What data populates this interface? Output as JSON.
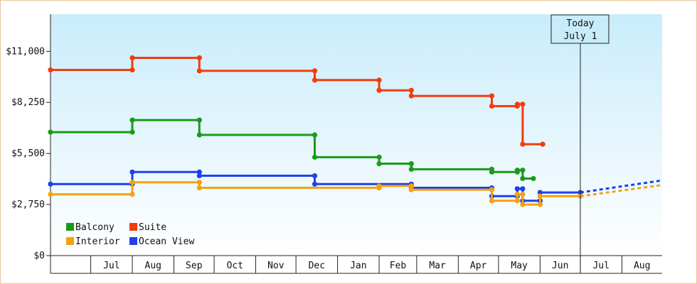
{
  "chart_data": {
    "type": "line",
    "step": true,
    "y_axis": {
      "ylim": [
        0,
        13000
      ],
      "ticks": [
        {
          "value": 0,
          "label": "$0"
        },
        {
          "value": 2750,
          "label": "$2,750"
        },
        {
          "value": 5500,
          "label": "$5,500"
        },
        {
          "value": 8250,
          "label": "$8,250"
        },
        {
          "value": 11000,
          "label": "$11,000"
        }
      ]
    },
    "x_axis": {
      "start": "2024-06-01",
      "end": "2025-08-31",
      "months": [
        {
          "start": "2024-06-01",
          "label": ""
        },
        {
          "start": "2024-07-01",
          "label": "Jul"
        },
        {
          "start": "2024-08-01",
          "label": "Aug"
        },
        {
          "start": "2024-09-01",
          "label": "Sep"
        },
        {
          "start": "2024-10-01",
          "label": "Oct"
        },
        {
          "start": "2024-11-01",
          "label": "Nov"
        },
        {
          "start": "2024-12-01",
          "label": "Dec"
        },
        {
          "start": "2025-01-01",
          "label": "Jan"
        },
        {
          "start": "2025-02-01",
          "label": "Feb"
        },
        {
          "start": "2025-03-01",
          "label": "Mar"
        },
        {
          "start": "2025-04-01",
          "label": "Apr"
        },
        {
          "start": "2025-05-01",
          "label": "May"
        },
        {
          "start": "2025-06-01",
          "label": "Jun"
        },
        {
          "start": "2025-07-01",
          "label": "Jul"
        },
        {
          "start": "2025-08-01",
          "label": "Aug"
        }
      ]
    },
    "today": {
      "date": "2025-07-01",
      "line1": "Today",
      "line2": "July 1"
    },
    "legend": {
      "placement": "bottom-left",
      "items": [
        {
          "label": "Balcony",
          "color": "#1a9a1a"
        },
        {
          "label": "Suite",
          "color": "#f23c0f"
        },
        {
          "label": "Interior",
          "color": "#f5a20f"
        },
        {
          "label": "Ocean View",
          "color": "#1e40ee"
        }
      ]
    },
    "series": [
      {
        "name": "Suite",
        "color": "#f23c0f",
        "points": [
          [
            "2024-06-01",
            10000
          ],
          [
            "2024-08-01",
            10000
          ],
          [
            "2024-08-01",
            10650
          ],
          [
            "2024-09-20",
            10650
          ],
          [
            "2024-09-20",
            9950
          ],
          [
            "2024-12-15",
            9950
          ],
          [
            "2024-12-15",
            9450
          ],
          [
            "2025-02-01",
            9450
          ],
          [
            "2025-02-01",
            8900
          ],
          [
            "2025-02-25",
            8900
          ],
          [
            "2025-02-25",
            8600
          ],
          [
            "2025-04-26",
            8600
          ],
          [
            "2025-04-26",
            8050
          ],
          [
            "2025-05-15",
            8050
          ],
          [
            "2025-05-15",
            8150
          ],
          [
            "2025-05-19",
            8150
          ],
          [
            "2025-05-19",
            6000
          ],
          [
            "2025-06-03",
            6000
          ]
        ]
      },
      {
        "name": "Balcony",
        "color": "#1a9a1a",
        "points": [
          [
            "2024-06-01",
            6650
          ],
          [
            "2024-08-01",
            6650
          ],
          [
            "2024-08-01",
            7300
          ],
          [
            "2024-09-20",
            7300
          ],
          [
            "2024-09-20",
            6500
          ],
          [
            "2024-12-15",
            6500
          ],
          [
            "2024-12-15",
            5300
          ],
          [
            "2025-02-01",
            5300
          ],
          [
            "2025-02-01",
            4950
          ],
          [
            "2025-02-25",
            4950
          ],
          [
            "2025-02-25",
            4650
          ],
          [
            "2025-04-26",
            4650
          ],
          [
            "2025-04-26",
            4500
          ],
          [
            "2025-05-15",
            4500
          ],
          [
            "2025-05-15",
            4600
          ],
          [
            "2025-05-19",
            4600
          ],
          [
            "2025-05-19",
            4150
          ],
          [
            "2025-05-27",
            4150
          ]
        ]
      },
      {
        "name": "Ocean View",
        "color": "#1e40ee",
        "points": [
          [
            "2024-06-01",
            3850
          ],
          [
            "2024-08-01",
            3850
          ],
          [
            "2024-08-01",
            4500
          ],
          [
            "2024-09-20",
            4500
          ],
          [
            "2024-09-20",
            4300
          ],
          [
            "2024-12-15",
            4300
          ],
          [
            "2024-12-15",
            3850
          ],
          [
            "2025-02-25",
            3850
          ],
          [
            "2025-02-25",
            3650
          ],
          [
            "2025-04-26",
            3650
          ],
          [
            "2025-04-26",
            3200
          ],
          [
            "2025-05-15",
            3200
          ],
          [
            "2025-05-15",
            3600
          ],
          [
            "2025-05-19",
            3600
          ],
          [
            "2025-05-19",
            2950
          ],
          [
            "2025-06-01",
            2950
          ],
          [
            "2025-06-01",
            3400
          ],
          [
            "2025-07-01",
            3400
          ]
        ],
        "projection": [
          [
            "2025-07-01",
            3400
          ],
          [
            "2025-08-31",
            4050
          ]
        ]
      },
      {
        "name": "Interior",
        "color": "#f5a20f",
        "points": [
          [
            "2024-06-01",
            3300
          ],
          [
            "2024-08-01",
            3300
          ],
          [
            "2024-08-01",
            3950
          ],
          [
            "2024-09-20",
            3950
          ],
          [
            "2024-09-20",
            3650
          ],
          [
            "2025-02-01",
            3650
          ],
          [
            "2025-02-01",
            3750
          ],
          [
            "2025-02-25",
            3750
          ],
          [
            "2025-02-25",
            3550
          ],
          [
            "2025-04-26",
            3550
          ],
          [
            "2025-04-26",
            2950
          ],
          [
            "2025-05-15",
            2950
          ],
          [
            "2025-05-15",
            3300
          ],
          [
            "2025-05-19",
            3300
          ],
          [
            "2025-05-19",
            2750
          ],
          [
            "2025-06-01",
            2750
          ],
          [
            "2025-06-01",
            3200
          ],
          [
            "2025-07-01",
            3200
          ]
        ],
        "projection": [
          [
            "2025-07-01",
            3200
          ],
          [
            "2025-08-31",
            3800
          ]
        ]
      }
    ]
  }
}
